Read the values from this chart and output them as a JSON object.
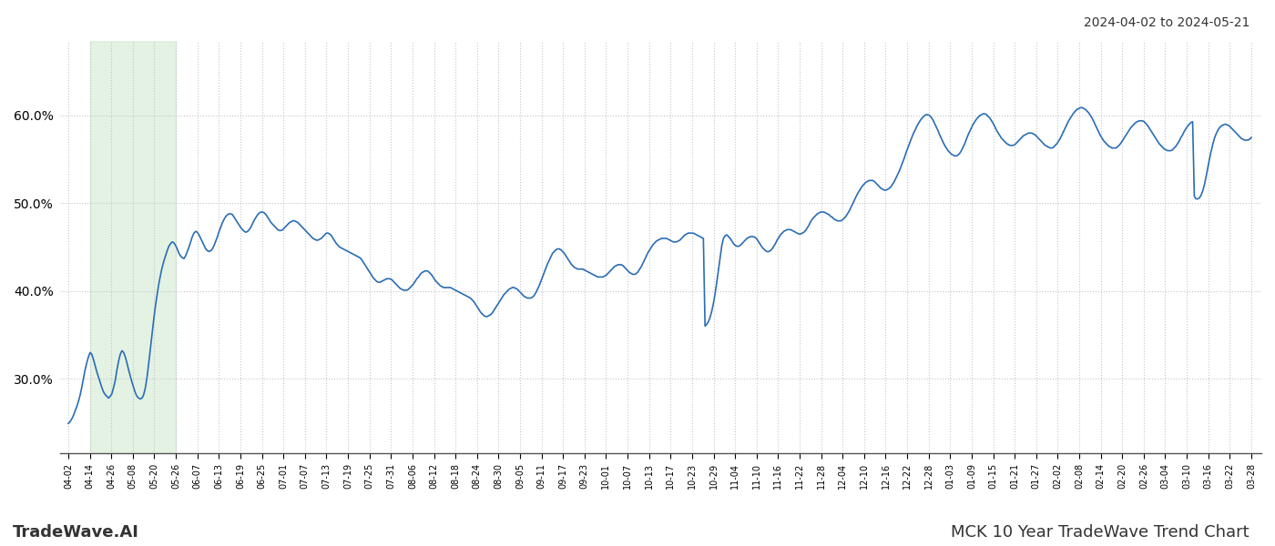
{
  "title_right": "2024-04-02 to 2024-05-21",
  "footer_left": "TradeWave.AI",
  "footer_right": "MCK 10 Year TradeWave Trend Chart",
  "line_color": "#2a6db5",
  "line_width": 1.2,
  "shade_color": "#d4ecd4",
  "shade_alpha": 0.65,
  "ylim": [
    0.215,
    0.685
  ],
  "yticks": [
    0.3,
    0.4,
    0.5,
    0.6
  ],
  "background_color": "#ffffff",
  "grid_color": "#c0c0c0",
  "xtick_labels": [
    "04-02",
    "04-14",
    "04-26",
    "05-08",
    "05-20",
    "05-26",
    "06-07",
    "06-13",
    "06-19",
    "06-25",
    "07-01",
    "07-07",
    "07-13",
    "07-19",
    "07-25",
    "07-31",
    "08-06",
    "08-12",
    "08-18",
    "08-24",
    "08-30",
    "09-05",
    "09-11",
    "09-17",
    "09-23",
    "10-01",
    "10-07",
    "10-13",
    "10-17",
    "10-23",
    "10-29",
    "11-04",
    "11-10",
    "11-16",
    "11-22",
    "11-28",
    "12-04",
    "12-10",
    "12-16",
    "12-22",
    "12-28",
    "01-03",
    "01-09",
    "01-15",
    "01-21",
    "01-27",
    "02-02",
    "02-08",
    "02-14",
    "02-20",
    "02-26",
    "03-04",
    "03-10",
    "03-16",
    "03-22",
    "03-28"
  ],
  "shade_label_start": "04-14",
  "shade_label_end": "05-26",
  "y_values": [
    0.249,
    0.251,
    0.254,
    0.258,
    0.263,
    0.268,
    0.274,
    0.281,
    0.29,
    0.3,
    0.31,
    0.318,
    0.325,
    0.33,
    0.328,
    0.322,
    0.315,
    0.308,
    0.302,
    0.296,
    0.29,
    0.285,
    0.282,
    0.28,
    0.278,
    0.28,
    0.283,
    0.29,
    0.298,
    0.31,
    0.32,
    0.328,
    0.332,
    0.33,
    0.325,
    0.318,
    0.31,
    0.303,
    0.296,
    0.29,
    0.284,
    0.28,
    0.278,
    0.277,
    0.278,
    0.282,
    0.29,
    0.302,
    0.318,
    0.335,
    0.352,
    0.368,
    0.383,
    0.396,
    0.408,
    0.418,
    0.427,
    0.434,
    0.44,
    0.446,
    0.451,
    0.454,
    0.456,
    0.455,
    0.452,
    0.448,
    0.443,
    0.44,
    0.438,
    0.437,
    0.44,
    0.445,
    0.45,
    0.456,
    0.462,
    0.466,
    0.468,
    0.467,
    0.464,
    0.46,
    0.456,
    0.452,
    0.448,
    0.446,
    0.445,
    0.446,
    0.448,
    0.452,
    0.457,
    0.462,
    0.468,
    0.473,
    0.478,
    0.482,
    0.485,
    0.487,
    0.488,
    0.488,
    0.487,
    0.484,
    0.481,
    0.478,
    0.475,
    0.472,
    0.47,
    0.468,
    0.467,
    0.468,
    0.47,
    0.473,
    0.477,
    0.481,
    0.484,
    0.487,
    0.489,
    0.49,
    0.49,
    0.489,
    0.487,
    0.484,
    0.481,
    0.478,
    0.476,
    0.474,
    0.472,
    0.47,
    0.469,
    0.469,
    0.47,
    0.472,
    0.474,
    0.476,
    0.478,
    0.479,
    0.48,
    0.48,
    0.479,
    0.478,
    0.476,
    0.474,
    0.472,
    0.47,
    0.468,
    0.466,
    0.464,
    0.462,
    0.46,
    0.459,
    0.458,
    0.458,
    0.459,
    0.46,
    0.462,
    0.464,
    0.466,
    0.466,
    0.465,
    0.463,
    0.46,
    0.457,
    0.454,
    0.452,
    0.45,
    0.449,
    0.448,
    0.447,
    0.446,
    0.445,
    0.444,
    0.443,
    0.442,
    0.441,
    0.44,
    0.439,
    0.438,
    0.436,
    0.433,
    0.43,
    0.427,
    0.424,
    0.421,
    0.418,
    0.415,
    0.413,
    0.411,
    0.41,
    0.41,
    0.411,
    0.412,
    0.413,
    0.414,
    0.414,
    0.414,
    0.413,
    0.411,
    0.409,
    0.407,
    0.405,
    0.403,
    0.402,
    0.401,
    0.401,
    0.401,
    0.402,
    0.404,
    0.406,
    0.408,
    0.411,
    0.414,
    0.416,
    0.419,
    0.421,
    0.422,
    0.423,
    0.423,
    0.422,
    0.42,
    0.418,
    0.415,
    0.412,
    0.41,
    0.408,
    0.406,
    0.405,
    0.404,
    0.404,
    0.404,
    0.404,
    0.404,
    0.403,
    0.402,
    0.401,
    0.4,
    0.399,
    0.398,
    0.397,
    0.396,
    0.395,
    0.394,
    0.393,
    0.392,
    0.39,
    0.388,
    0.385,
    0.382,
    0.379,
    0.376,
    0.374,
    0.372,
    0.371,
    0.371,
    0.372,
    0.373,
    0.375,
    0.378,
    0.381,
    0.384,
    0.387,
    0.39,
    0.393,
    0.396,
    0.398,
    0.4,
    0.402,
    0.403,
    0.404,
    0.404,
    0.403,
    0.402,
    0.4,
    0.398,
    0.396,
    0.394,
    0.393,
    0.392,
    0.392,
    0.392,
    0.393,
    0.395,
    0.398,
    0.402,
    0.406,
    0.411,
    0.416,
    0.421,
    0.426,
    0.431,
    0.435,
    0.439,
    0.443,
    0.445,
    0.447,
    0.448,
    0.448,
    0.447,
    0.445,
    0.443,
    0.44,
    0.437,
    0.434,
    0.431,
    0.429,
    0.427,
    0.426,
    0.425,
    0.425,
    0.425,
    0.425,
    0.424,
    0.423,
    0.422,
    0.421,
    0.42,
    0.419,
    0.418,
    0.417,
    0.416,
    0.416,
    0.416,
    0.416,
    0.417,
    0.418,
    0.42,
    0.422,
    0.424,
    0.426,
    0.428,
    0.429,
    0.43,
    0.43,
    0.43,
    0.429,
    0.427,
    0.425,
    0.423,
    0.421,
    0.42,
    0.419,
    0.419,
    0.42,
    0.422,
    0.425,
    0.428,
    0.432,
    0.436,
    0.44,
    0.444,
    0.447,
    0.45,
    0.453,
    0.455,
    0.457,
    0.458,
    0.459,
    0.46,
    0.46,
    0.46,
    0.46,
    0.459,
    0.458,
    0.457,
    0.456,
    0.456,
    0.456,
    0.457,
    0.458,
    0.46,
    0.462,
    0.464,
    0.465,
    0.466,
    0.466,
    0.466,
    0.466,
    0.465,
    0.464,
    0.463,
    0.462,
    0.461,
    0.46,
    0.36,
    0.362,
    0.365,
    0.37,
    0.377,
    0.386,
    0.397,
    0.41,
    0.424,
    0.438,
    0.452,
    0.46,
    0.463,
    0.464,
    0.462,
    0.46,
    0.457,
    0.454,
    0.452,
    0.451,
    0.451,
    0.452,
    0.454,
    0.456,
    0.458,
    0.46,
    0.461,
    0.462,
    0.462,
    0.462,
    0.461,
    0.459,
    0.456,
    0.453,
    0.45,
    0.448,
    0.446,
    0.445,
    0.445,
    0.446,
    0.448,
    0.451,
    0.454,
    0.458,
    0.461,
    0.464,
    0.466,
    0.468,
    0.469,
    0.47,
    0.47,
    0.47,
    0.469,
    0.468,
    0.467,
    0.466,
    0.465,
    0.465,
    0.466,
    0.467,
    0.469,
    0.472,
    0.475,
    0.479,
    0.482,
    0.484,
    0.486,
    0.488,
    0.489,
    0.49,
    0.49,
    0.49,
    0.489,
    0.488,
    0.487,
    0.485,
    0.484,
    0.482,
    0.481,
    0.48,
    0.48,
    0.48,
    0.481,
    0.483,
    0.485,
    0.488,
    0.491,
    0.495,
    0.499,
    0.503,
    0.507,
    0.511,
    0.514,
    0.517,
    0.52,
    0.522,
    0.524,
    0.525,
    0.526,
    0.526,
    0.526,
    0.525,
    0.523,
    0.521,
    0.519,
    0.517,
    0.516,
    0.515,
    0.515,
    0.516,
    0.517,
    0.519,
    0.522,
    0.525,
    0.529,
    0.533,
    0.537,
    0.542,
    0.547,
    0.552,
    0.558,
    0.563,
    0.568,
    0.573,
    0.578,
    0.582,
    0.586,
    0.59,
    0.593,
    0.596,
    0.598,
    0.6,
    0.601,
    0.601,
    0.6,
    0.598,
    0.595,
    0.591,
    0.587,
    0.583,
    0.578,
    0.574,
    0.57,
    0.566,
    0.563,
    0.56,
    0.558,
    0.556,
    0.555,
    0.554,
    0.554,
    0.555,
    0.557,
    0.56,
    0.564,
    0.568,
    0.573,
    0.578,
    0.582,
    0.586,
    0.59,
    0.593,
    0.596,
    0.598,
    0.6,
    0.601,
    0.602,
    0.602,
    0.601,
    0.599,
    0.597,
    0.594,
    0.591,
    0.587,
    0.583,
    0.58,
    0.577,
    0.574,
    0.572,
    0.57,
    0.568,
    0.567,
    0.566,
    0.566,
    0.566,
    0.567,
    0.569,
    0.571,
    0.573,
    0.575,
    0.577,
    0.578,
    0.579,
    0.58,
    0.58,
    0.58,
    0.579,
    0.578,
    0.576,
    0.574,
    0.572,
    0.57,
    0.568,
    0.566,
    0.565,
    0.564,
    0.563,
    0.563,
    0.564,
    0.566,
    0.568,
    0.571,
    0.574,
    0.578,
    0.582,
    0.586,
    0.59,
    0.594,
    0.597,
    0.6,
    0.603,
    0.605,
    0.607,
    0.608,
    0.609,
    0.609,
    0.608,
    0.607,
    0.605,
    0.603,
    0.6,
    0.597,
    0.593,
    0.589,
    0.585,
    0.581,
    0.577,
    0.574,
    0.571,
    0.569,
    0.567,
    0.565,
    0.564,
    0.563,
    0.563,
    0.563,
    0.564,
    0.566,
    0.568,
    0.571,
    0.574,
    0.577,
    0.58,
    0.583,
    0.586,
    0.588,
    0.59,
    0.592,
    0.593,
    0.594,
    0.594,
    0.594,
    0.593,
    0.591,
    0.589,
    0.586,
    0.583,
    0.58,
    0.577,
    0.574,
    0.571,
    0.568,
    0.566,
    0.564,
    0.562,
    0.561,
    0.56,
    0.56,
    0.56,
    0.561,
    0.563,
    0.565,
    0.568,
    0.571,
    0.575,
    0.578,
    0.582,
    0.585,
    0.588,
    0.59,
    0.592,
    0.593,
    0.508,
    0.505,
    0.505,
    0.506,
    0.509,
    0.514,
    0.521,
    0.53,
    0.54,
    0.55,
    0.559,
    0.567,
    0.574,
    0.579,
    0.583,
    0.586,
    0.588,
    0.589,
    0.59,
    0.59,
    0.589,
    0.588,
    0.586,
    0.584,
    0.582,
    0.58,
    0.578,
    0.576,
    0.574,
    0.573,
    0.572,
    0.572,
    0.572,
    0.573,
    0.575
  ]
}
